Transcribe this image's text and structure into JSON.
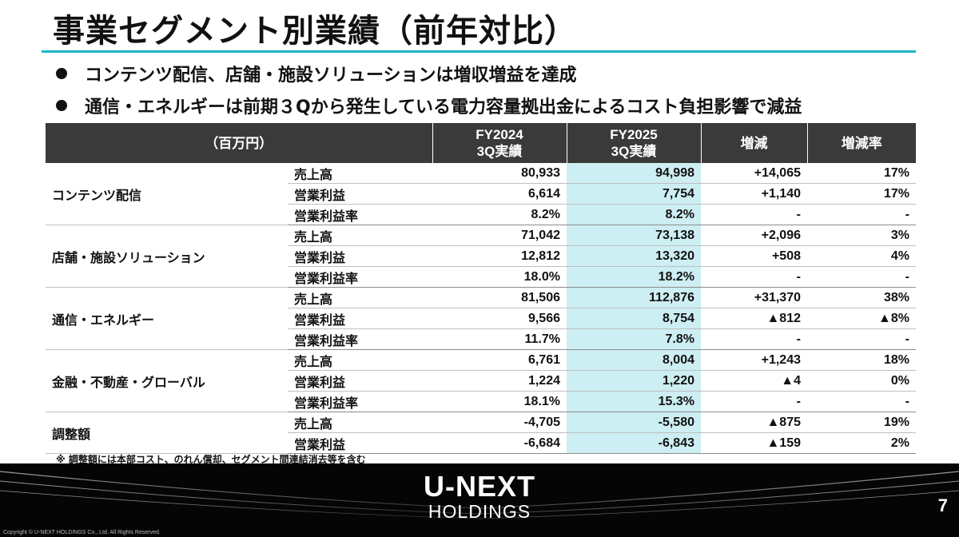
{
  "title": "事業セグメント別業績（前年対比）",
  "bullets": [
    "コンテンツ配信、店舗・施設ソリューションは増収増益を達成",
    "通信・エネルギーは前期３Qから発生している電力容量拠出金によるコスト負担影響で減益"
  ],
  "table": {
    "headers": {
      "unit": "（百万円）",
      "fy2024_line1": "FY2024",
      "fy2024_line2": "3Q実績",
      "fy2025_line1": "FY2025",
      "fy2025_line2": "3Q実績",
      "change": "増減",
      "change_rate": "増減率"
    },
    "segments": [
      {
        "name": "コンテンツ配信",
        "rows": [
          {
            "metric": "売上高",
            "fy2024": "80,933",
            "fy2025": "94,998",
            "change": "+14,065",
            "rate": "17%"
          },
          {
            "metric": "営業利益",
            "fy2024": "6,614",
            "fy2025": "7,754",
            "change": "+1,140",
            "rate": "17%"
          },
          {
            "metric": "営業利益率",
            "fy2024": "8.2%",
            "fy2025": "8.2%",
            "change": "-",
            "rate": "-"
          }
        ]
      },
      {
        "name": "店舗・施設ソリューション",
        "rows": [
          {
            "metric": "売上高",
            "fy2024": "71,042",
            "fy2025": "73,138",
            "change": "+2,096",
            "rate": "3%"
          },
          {
            "metric": "営業利益",
            "fy2024": "12,812",
            "fy2025": "13,320",
            "change": "+508",
            "rate": "4%"
          },
          {
            "metric": "営業利益率",
            "fy2024": "18.0%",
            "fy2025": "18.2%",
            "change": "-",
            "rate": "-"
          }
        ]
      },
      {
        "name": "通信・エネルギー",
        "rows": [
          {
            "metric": "売上高",
            "fy2024": "81,506",
            "fy2025": "112,876",
            "change": "+31,370",
            "rate": "38%"
          },
          {
            "metric": "営業利益",
            "fy2024": "9,566",
            "fy2025": "8,754",
            "change": "▲812",
            "rate": "▲8%"
          },
          {
            "metric": "営業利益率",
            "fy2024": "11.7%",
            "fy2025": "7.8%",
            "change": "-",
            "rate": "-"
          }
        ]
      },
      {
        "name": "金融・不動産・グローバル",
        "rows": [
          {
            "metric": "売上高",
            "fy2024": "6,761",
            "fy2025": "8,004",
            "change": "+1,243",
            "rate": "18%"
          },
          {
            "metric": "営業利益",
            "fy2024": "1,224",
            "fy2025": "1,220",
            "change": "▲4",
            "rate": "0%"
          },
          {
            "metric": "営業利益率",
            "fy2024": "18.1%",
            "fy2025": "15.3%",
            "change": "-",
            "rate": "-"
          }
        ]
      },
      {
        "name": "調整額",
        "rows": [
          {
            "metric": "売上高",
            "fy2024": "-4,705",
            "fy2025": "-5,580",
            "change": "▲875",
            "rate": "19%"
          },
          {
            "metric": "営業利益",
            "fy2024": "-6,684",
            "fy2025": "-6,843",
            "change": "▲159",
            "rate": "2%"
          }
        ]
      }
    ]
  },
  "note": "※ 調整額には本部コスト、のれん償却、セグメント間連結消去等を含む",
  "logo": {
    "main": "U-NEXT",
    "sub": "HOLDINGS"
  },
  "page_number": "7",
  "copyright": "Copyright © U-NEXT HOLDINGS Co., Ltd. All Rights Reserved.",
  "colors": {
    "accent": "#1fb6cc",
    "header_bg": "#3a3a3a",
    "highlight_col": "#cdeef2"
  }
}
